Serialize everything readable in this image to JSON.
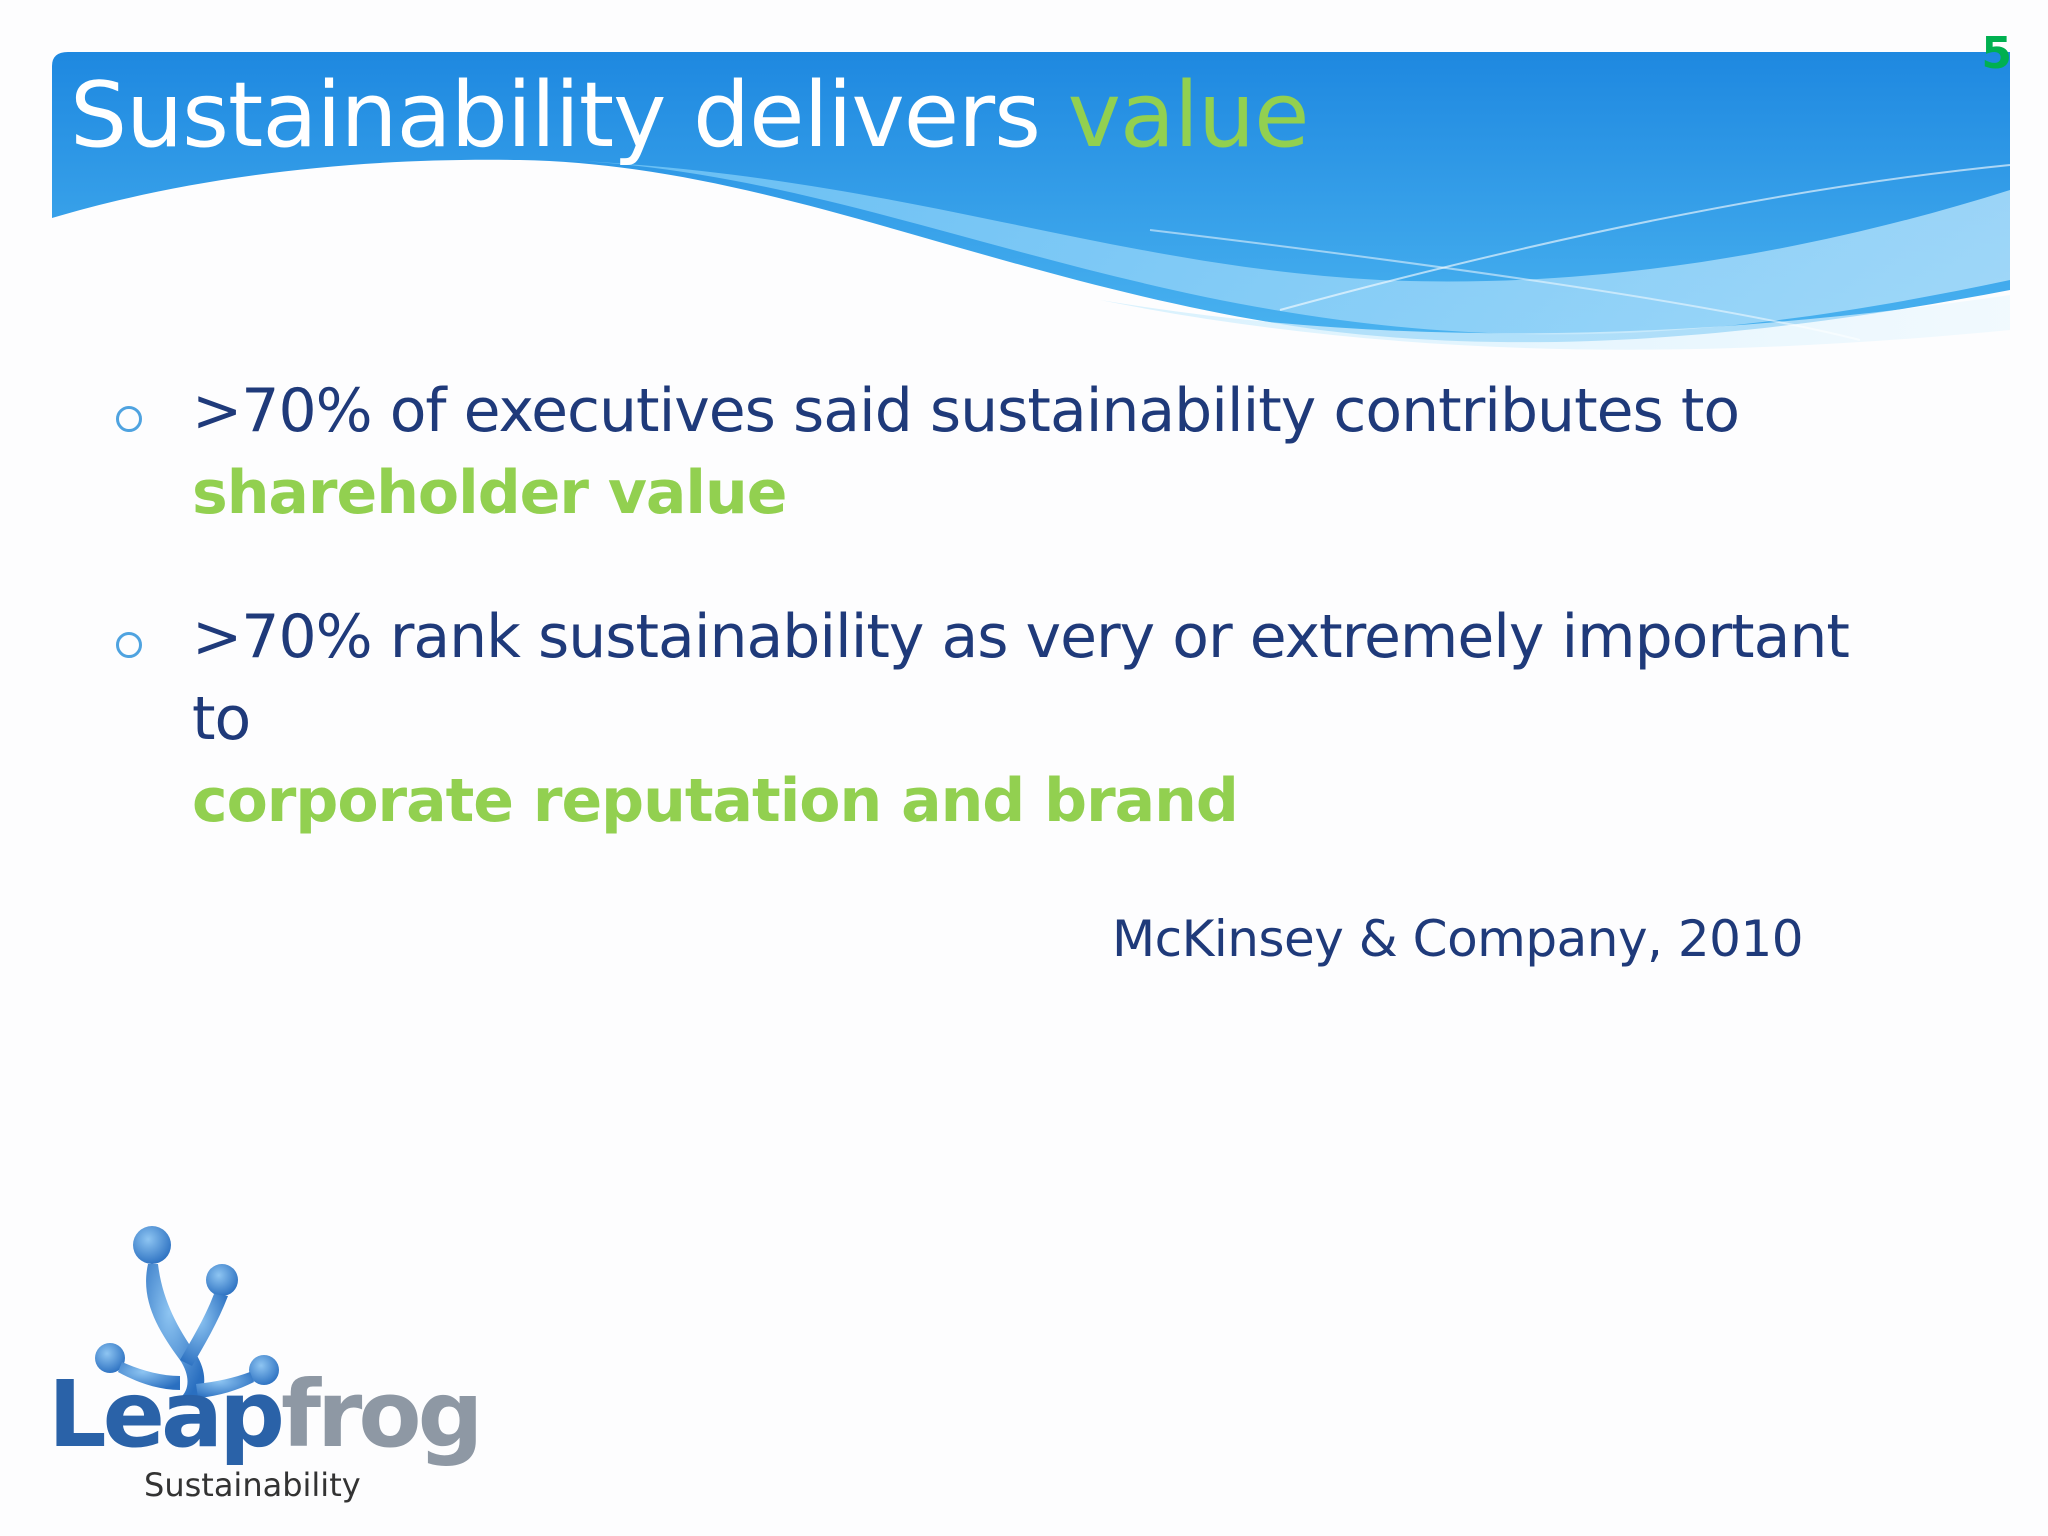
{
  "slide_number": "5",
  "title": {
    "main": "Sustainability delivers ",
    "accent": "value"
  },
  "bullets": [
    {
      "text": ">70% of executives said sustainability contributes to",
      "highlight": "shareholder value"
    },
    {
      "text": ">70% rank sustainability as very or extremely important to",
      "highlight": "corporate reputation and brand"
    }
  ],
  "citation": "McKinsey & Company, 2010",
  "logo": {
    "word_part1": "Leap",
    "word_part2": "frog",
    "tagline": "Sustainability"
  },
  "colors": {
    "title_blue": "#2a8fe0",
    "accent_green": "#92d050",
    "body_navy": "#1f3a7a",
    "slide_number_green": "#00b050"
  }
}
